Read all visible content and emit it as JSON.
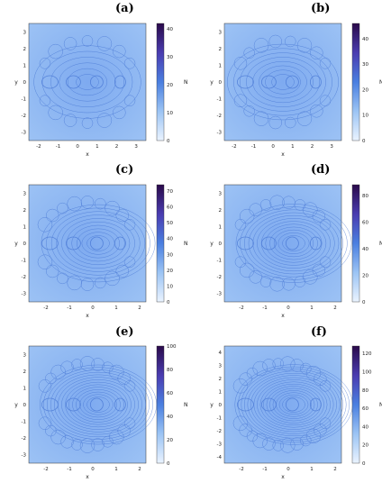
{
  "chart_data": [
    {
      "type": "heatmap",
      "panel": "(a)",
      "xlabel": "x",
      "ylabel": "y",
      "colorbar_label": "N",
      "x_ticks": [
        "-2",
        "-1",
        "0",
        "1",
        "2",
        "3"
      ],
      "y_ticks": [
        "3",
        "2",
        "1",
        "0",
        "-1",
        "-2",
        "-3"
      ],
      "xlim": [
        -3,
        3
      ],
      "ylim": [
        -3.5,
        3.5
      ],
      "cbar_ticks": [
        "40",
        "30",
        "20",
        "10",
        "0"
      ],
      "cbar_range": [
        0,
        42
      ]
    },
    {
      "type": "heatmap",
      "panel": "(b)",
      "xlabel": "x",
      "ylabel": "y",
      "colorbar_label": "N",
      "x_ticks": [
        "-2",
        "-1",
        "0",
        "1",
        "2",
        "3"
      ],
      "y_ticks": [
        "3",
        "2",
        "1",
        "0",
        "-1",
        "-2",
        "-3"
      ],
      "xlim": [
        -3,
        3
      ],
      "ylim": [
        -3.5,
        3.5
      ],
      "cbar_ticks": [
        "40",
        "30",
        "20",
        "10",
        "0"
      ],
      "cbar_range": [
        0,
        46
      ]
    },
    {
      "type": "heatmap",
      "panel": "(c)",
      "xlabel": "x",
      "ylabel": "y",
      "colorbar_label": "N",
      "x_ticks": [
        "-2",
        "-1",
        "0",
        "1",
        "2"
      ],
      "y_ticks": [
        "3",
        "2",
        "1",
        "0",
        "-1",
        "-2",
        "-3"
      ],
      "xlim": [
        -3,
        3
      ],
      "ylim": [
        -3.5,
        3.5
      ],
      "cbar_ticks": [
        "70",
        "60",
        "50",
        "40",
        "30",
        "20",
        "10",
        "0"
      ],
      "cbar_range": [
        0,
        74
      ]
    },
    {
      "type": "heatmap",
      "panel": "(d)",
      "xlabel": "x",
      "ylabel": "y",
      "colorbar_label": "N",
      "x_ticks": [
        "-2",
        "-1",
        "0",
        "1",
        "2"
      ],
      "y_ticks": [
        "3",
        "2",
        "1",
        "0",
        "-1",
        "-2",
        "-3"
      ],
      "xlim": [
        -3,
        3
      ],
      "ylim": [
        -3.5,
        3.5
      ],
      "cbar_ticks": [
        "80",
        "60",
        "40",
        "20",
        "0"
      ],
      "cbar_range": [
        0,
        88
      ]
    },
    {
      "type": "heatmap",
      "panel": "(e)",
      "xlabel": "x",
      "ylabel": "y",
      "colorbar_label": "N",
      "x_ticks": [
        "-2",
        "-1",
        "0",
        "1",
        "2"
      ],
      "y_ticks": [
        "3",
        "2",
        "1",
        "0",
        "-1",
        "-2",
        "-3"
      ],
      "xlim": [
        -3,
        3
      ],
      "ylim": [
        -3.5,
        3.5
      ],
      "cbar_ticks": [
        "100",
        "80",
        "60",
        "40",
        "20",
        "0"
      ],
      "cbar_range": [
        0,
        100
      ]
    },
    {
      "type": "heatmap",
      "panel": "(f)",
      "xlabel": "x",
      "ylabel": "y",
      "colorbar_label": "N",
      "x_ticks": [
        "-2",
        "-1",
        "0",
        "1",
        "2"
      ],
      "y_ticks": [
        "4",
        "3",
        "2",
        "1",
        "0",
        "-1",
        "-2",
        "-3",
        "-4"
      ],
      "xlim": [
        -3,
        3
      ],
      "ylim": [
        -4,
        4
      ],
      "cbar_ticks": [
        "120",
        "100",
        "80",
        "60",
        "40",
        "20",
        "0"
      ],
      "cbar_range": [
        0,
        128
      ]
    }
  ],
  "colors": {
    "field": "#8db8f0",
    "pattern": "#3f6fd0",
    "cbar_top": "#2a0a4a",
    "cbar_mid": "#4a7fe0",
    "cbar_bottom": "#eaf3ff"
  }
}
